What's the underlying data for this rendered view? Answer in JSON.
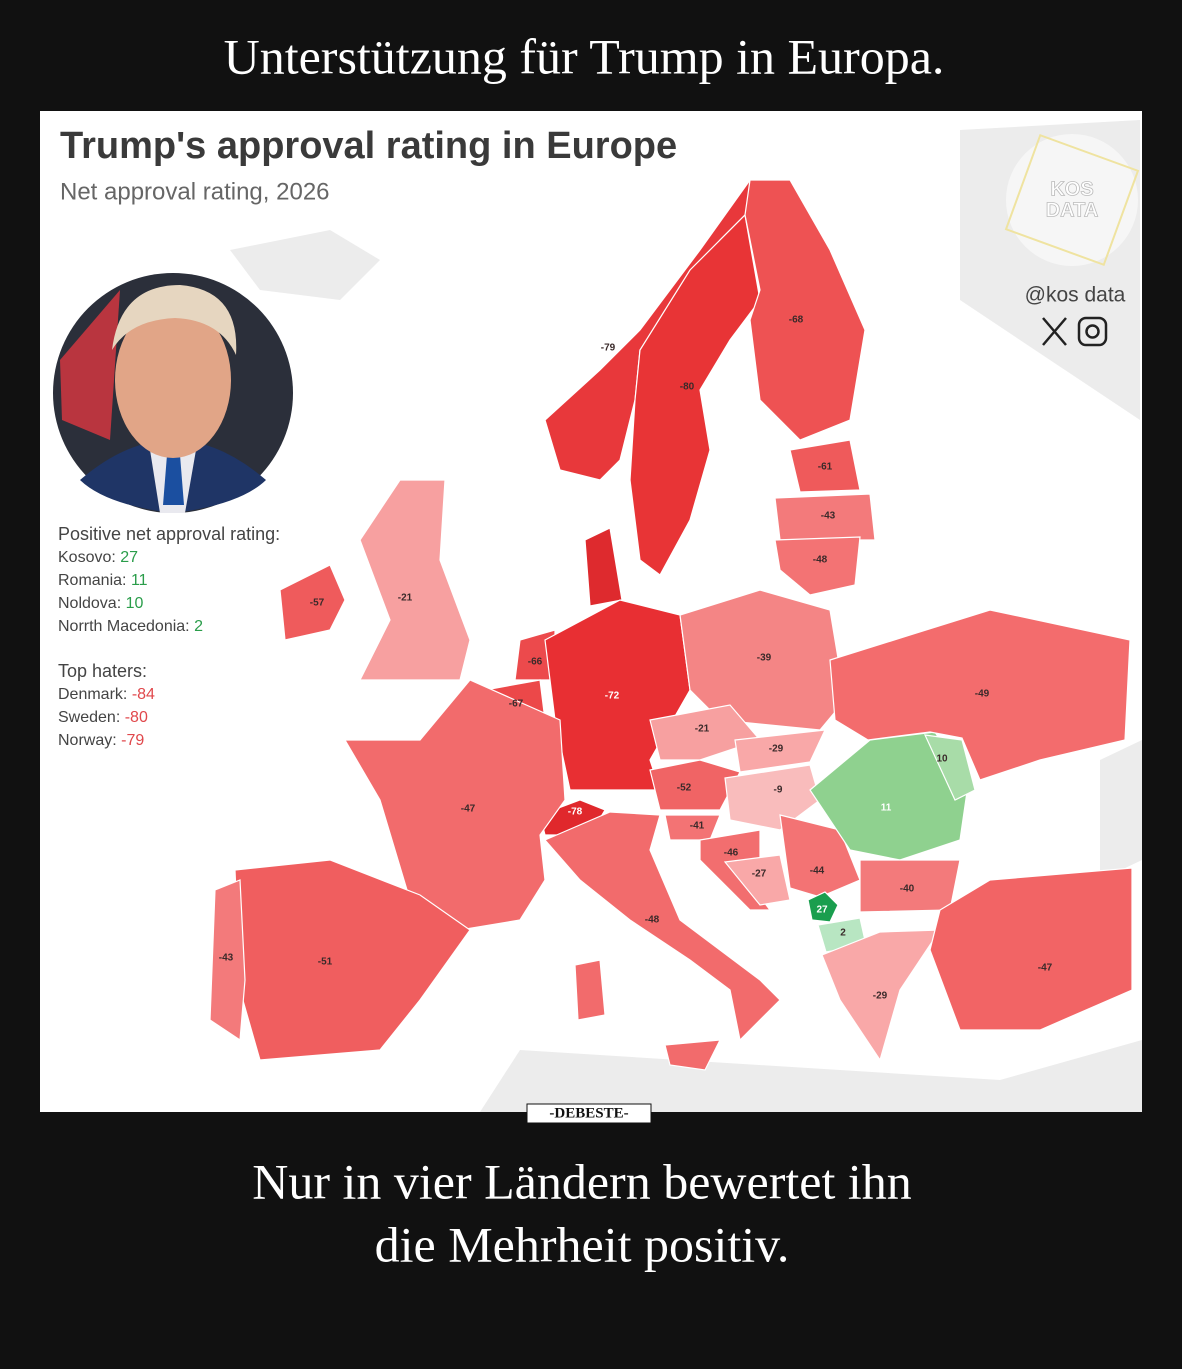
{
  "header": {
    "title": "Unterstützung für Trump in Europa."
  },
  "map": {
    "title": "Trump's approval rating in Europe",
    "subtitle": "Net approval rating, 2026",
    "logo": [
      "KOS",
      "DATA"
    ],
    "handle": "@kos data",
    "positive": {
      "heading": "Positive net approval rating:",
      "items": [
        {
          "name": "Kosovo:",
          "value": 27
        },
        {
          "name": "Romania:",
          "value": 11
        },
        {
          "name": "Noldova:",
          "value": 10
        },
        {
          "name": "Norrth Macedonia:",
          "value": 2
        }
      ]
    },
    "haters": {
      "heading": "Top haters:",
      "items": [
        {
          "name": "Denmark:",
          "value": -84
        },
        {
          "name": "Sweden:",
          "value": -80
        },
        {
          "name": "Norway:",
          "value": -79
        }
      ]
    },
    "labels": [
      -79,
      -80,
      -68,
      -61,
      -43,
      -48,
      -57,
      -21,
      -66,
      -67,
      -72,
      -39,
      -49,
      -21,
      -29,
      10,
      -52,
      -9,
      11,
      -78,
      -47,
      -41,
      -46,
      -27,
      -44,
      -40,
      27,
      2,
      -48,
      -43,
      -51,
      -29,
      -47
    ]
  },
  "caption": {
    "lines": [
      "Nur in vier Ländern bewertet ihn",
      "die Mehrheit positiv."
    ]
  },
  "watermark": "-DEBESTE-"
}
